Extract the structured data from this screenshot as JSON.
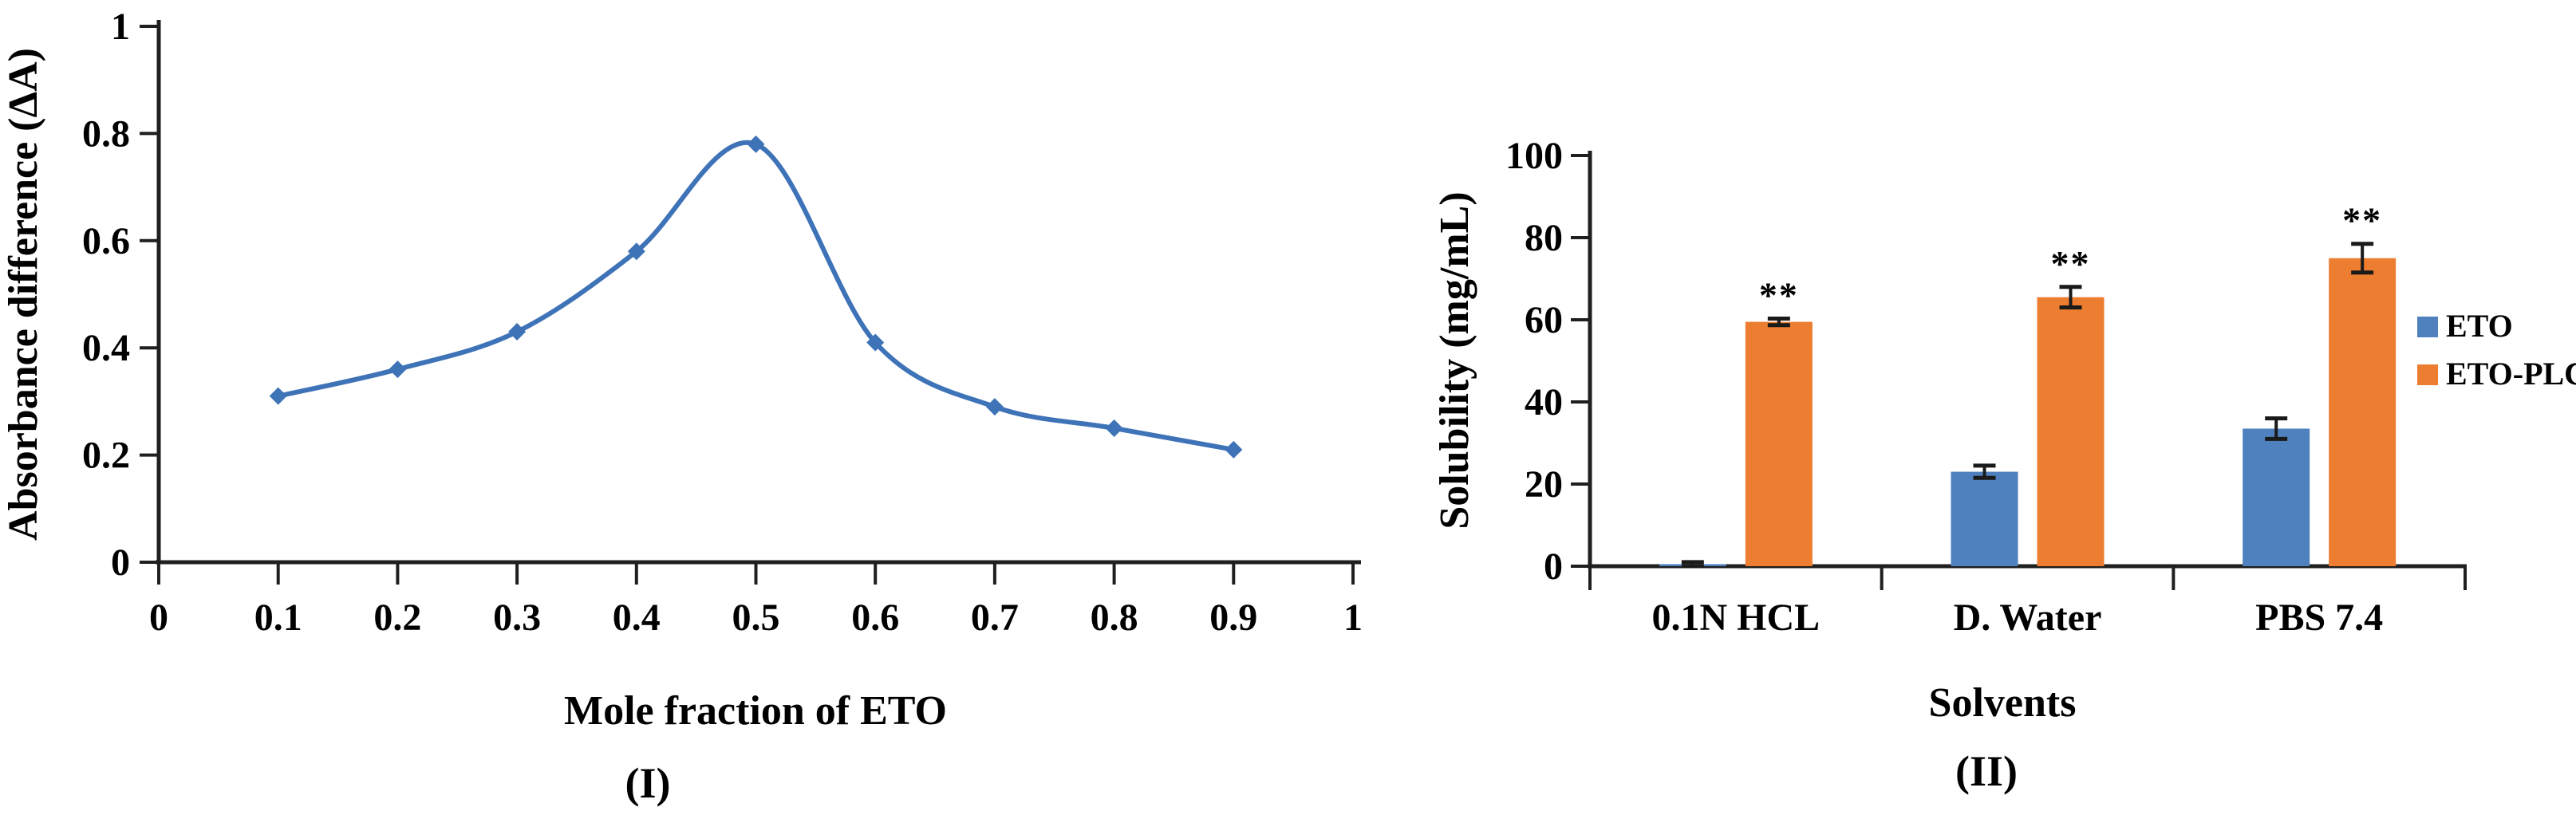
{
  "figure": {
    "background": "#ffffff",
    "panel1_caption": "(I)",
    "panel2_caption": "(II)"
  },
  "colors": {
    "line_blue": "#3e73b8",
    "bar_blue": "#4e81bd",
    "bar_orange": "#ed7d31",
    "axis": "#1f1f1f",
    "error_bar": "#1a1a1a",
    "text": "#000000"
  },
  "chart_data": [
    {
      "type": "line",
      "title": "",
      "xlabel": "Mole fraction of ETO",
      "ylabel": "Absorbance difference (ΔA)",
      "caption": "(I)",
      "x": [
        0.1,
        0.2,
        0.3,
        0.4,
        0.5,
        0.6,
        0.7,
        0.8,
        0.9
      ],
      "y": [
        0.31,
        0.36,
        0.43,
        0.58,
        0.78,
        0.41,
        0.29,
        0.25,
        0.21
      ],
      "xlim": [
        0,
        1
      ],
      "ylim": [
        0,
        1
      ],
      "xticks": [
        {
          "v": 0,
          "label": "0"
        },
        {
          "v": 0.1,
          "label": "0.1"
        },
        {
          "v": 0.2,
          "label": "0.2"
        },
        {
          "v": 0.3,
          "label": "0.3"
        },
        {
          "v": 0.4,
          "label": "0.4"
        },
        {
          "v": 0.5,
          "label": "0.5"
        },
        {
          "v": 0.6,
          "label": "0.6"
        },
        {
          "v": 0.7,
          "label": "0.7"
        },
        {
          "v": 0.8,
          "label": "0.8"
        },
        {
          "v": 0.9,
          "label": "0.9"
        },
        {
          "v": 1,
          "label": "1"
        }
      ],
      "yticks": [
        {
          "v": 0,
          "label": "0"
        },
        {
          "v": 0.2,
          "label": "0.2"
        },
        {
          "v": 0.4,
          "label": "0.4"
        },
        {
          "v": 0.6,
          "label": "0.6"
        },
        {
          "v": 0.8,
          "label": "0.8"
        },
        {
          "v": 1,
          "label": "1"
        }
      ],
      "line_color": "#3e73b8",
      "marker": "diamond",
      "smooth": true,
      "grid": false,
      "legend": null
    },
    {
      "type": "bar",
      "title": "",
      "xlabel": "Solvents",
      "ylabel": "Solubility (mg/mL)",
      "caption": "(II)",
      "categories": [
        "0.1N HCL",
        "D. Water",
        "PBS 7.4"
      ],
      "series": [
        {
          "name": "ETO",
          "color": "#4e81bd",
          "values": [
            0.5,
            23,
            33.5
          ],
          "errors": [
            0.5,
            1.5,
            2.5
          ],
          "significance": [
            "",
            "",
            ""
          ]
        },
        {
          "name": "ETO-PLC",
          "color": "#ed7d31",
          "values": [
            59.5,
            65.5,
            75
          ],
          "errors": [
            0.8,
            2.5,
            3.5
          ],
          "significance": [
            "**",
            "**",
            "**"
          ]
        }
      ],
      "ylim": [
        0,
        100
      ],
      "yticks": [
        {
          "v": 0,
          "label": "0"
        },
        {
          "v": 20,
          "label": "20"
        },
        {
          "v": 40,
          "label": "40"
        },
        {
          "v": 60,
          "label": "60"
        },
        {
          "v": 80,
          "label": "80"
        },
        {
          "v": 100,
          "label": "100"
        }
      ],
      "grid": false,
      "legend_position": "right"
    }
  ]
}
